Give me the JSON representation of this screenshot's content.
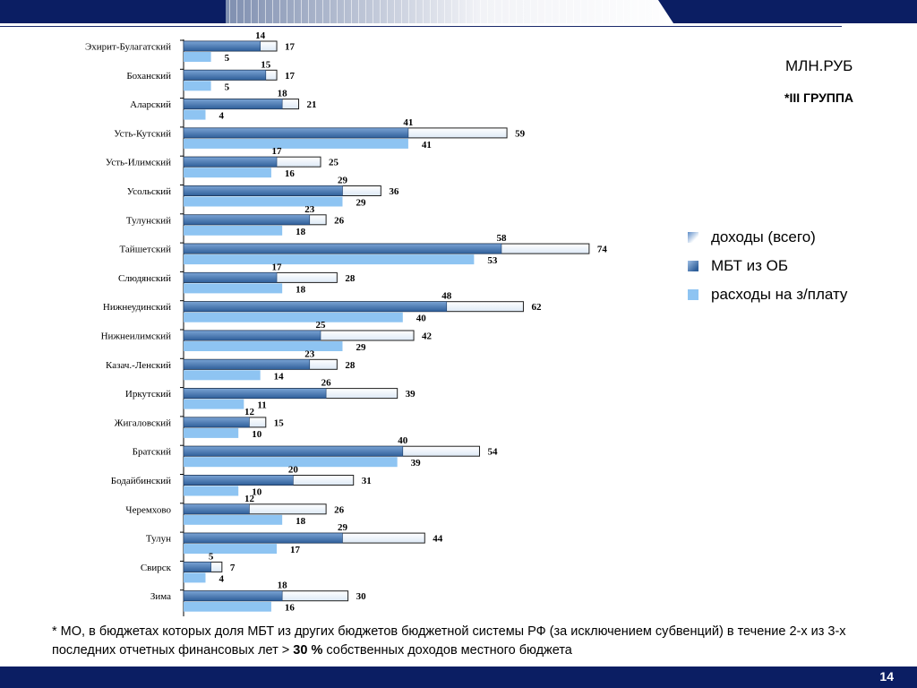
{
  "page": {
    "unit_label": "МЛН.РУБ",
    "group_label": "*III ГРУППА",
    "footnote": {
      "part1": "* МО, в бюджетах которых доля МБТ из других бюджетов бюджетной системы РФ (за исключением субвенций) в течение 2-х из 3-х последних отчетных финансовых лет > ",
      "bold": "30 %",
      "part2": " собственных доходов местного бюджета"
    },
    "page_number": "14",
    "colors": {
      "header_dark": "#0b1e63",
      "rule": "#1a2a6c",
      "income_series": "#ffffff",
      "mbt_series": "#4f7db8",
      "salary_series": "#8ec4f2"
    }
  },
  "chart_data": {
    "type": "bar",
    "orientation": "horizontal",
    "categories": [
      "Эхирит-Булагатский",
      "Боханский",
      "Аларский",
      "Усть-Кутский",
      "Усть-Илимский",
      "Усольский",
      "Тулунский",
      "Тайшетский",
      "Слюдянский",
      "Нижнеудинский",
      "Нижнеилимский",
      "Казач.-Ленский",
      "Иркутский",
      "Жигаловский",
      "Братский",
      "Бодайбинский",
      "Черемхово",
      "Тулун",
      "Свирск",
      "Зима"
    ],
    "series": [
      {
        "name": "доходы (всего)",
        "color": "#ffffff",
        "values": [
          17,
          17,
          21,
          59,
          25,
          36,
          26,
          74,
          28,
          62,
          42,
          28,
          39,
          15,
          54,
          31,
          26,
          44,
          7,
          30
        ]
      },
      {
        "name": "МБТ из ОБ",
        "color": "#4f7db8",
        "values": [
          14,
          15,
          18,
          41,
          17,
          29,
          23,
          58,
          17,
          48,
          25,
          23,
          26,
          12,
          40,
          20,
          12,
          29,
          5,
          18
        ]
      },
      {
        "name": "расходы на з/плату",
        "color": "#8ec4f2",
        "values": [
          5,
          5,
          4,
          41,
          16,
          29,
          18,
          53,
          18,
          40,
          29,
          14,
          11,
          10,
          39,
          10,
          18,
          17,
          4,
          16
        ]
      }
    ],
    "xlim": [
      0,
      100
    ],
    "grid": false,
    "legend_position": "right"
  }
}
